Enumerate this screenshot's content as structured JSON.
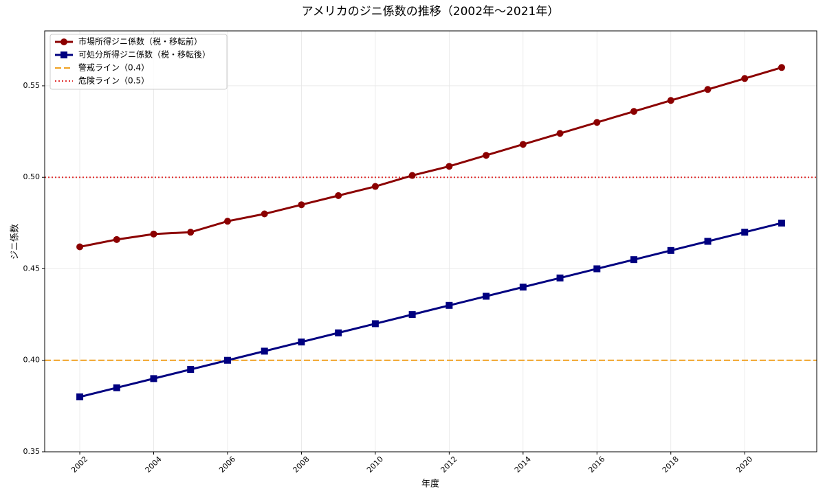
{
  "chart_data": {
    "type": "line",
    "title": "アメリカのジニ係数の推移（2002年〜2021年）",
    "x_label": "年度",
    "y_label": "ジニ係数",
    "x": [
      2002,
      2003,
      2004,
      2005,
      2006,
      2007,
      2008,
      2009,
      2010,
      2011,
      2012,
      2013,
      2014,
      2015,
      2016,
      2017,
      2018,
      2019,
      2020,
      2021
    ],
    "series": [
      {
        "name": "市場所得ジニ係数（税・移転前）",
        "color": "#8b0000",
        "marker": "circle",
        "values": [
          0.462,
          0.466,
          0.469,
          0.47,
          0.476,
          0.48,
          0.485,
          0.49,
          0.495,
          0.501,
          0.506,
          0.512,
          0.518,
          0.524,
          0.53,
          0.536,
          0.542,
          0.548,
          0.554,
          0.56
        ]
      },
      {
        "name": "可処分所得ジニ係数（税・移転後）",
        "color": "#000080",
        "marker": "square",
        "values": [
          0.38,
          0.385,
          0.39,
          0.395,
          0.4,
          0.405,
          0.41,
          0.415,
          0.42,
          0.425,
          0.43,
          0.435,
          0.44,
          0.445,
          0.45,
          0.455,
          0.46,
          0.465,
          0.47,
          0.475
        ]
      }
    ],
    "reference_lines": [
      {
        "name": "警戒ライン（0.4）",
        "value": 0.4,
        "color": "#f0a020",
        "style": "dashed"
      },
      {
        "name": "危険ライン（0.5）",
        "value": 0.5,
        "color": "#e03030",
        "style": "dotted"
      }
    ],
    "xlim": [
      2001.05,
      2021.95
    ],
    "ylim": [
      0.35,
      0.58
    ],
    "xticks": [
      2002,
      2004,
      2006,
      2008,
      2010,
      2012,
      2014,
      2016,
      2018,
      2020
    ],
    "yticks": [
      0.35,
      {
        "value": 0.4,
        "label": "0.40"
      },
      0.45,
      {
        "value": 0.5,
        "label": "0.50"
      },
      0.55
    ],
    "grid": true,
    "legend": "upper-left"
  }
}
